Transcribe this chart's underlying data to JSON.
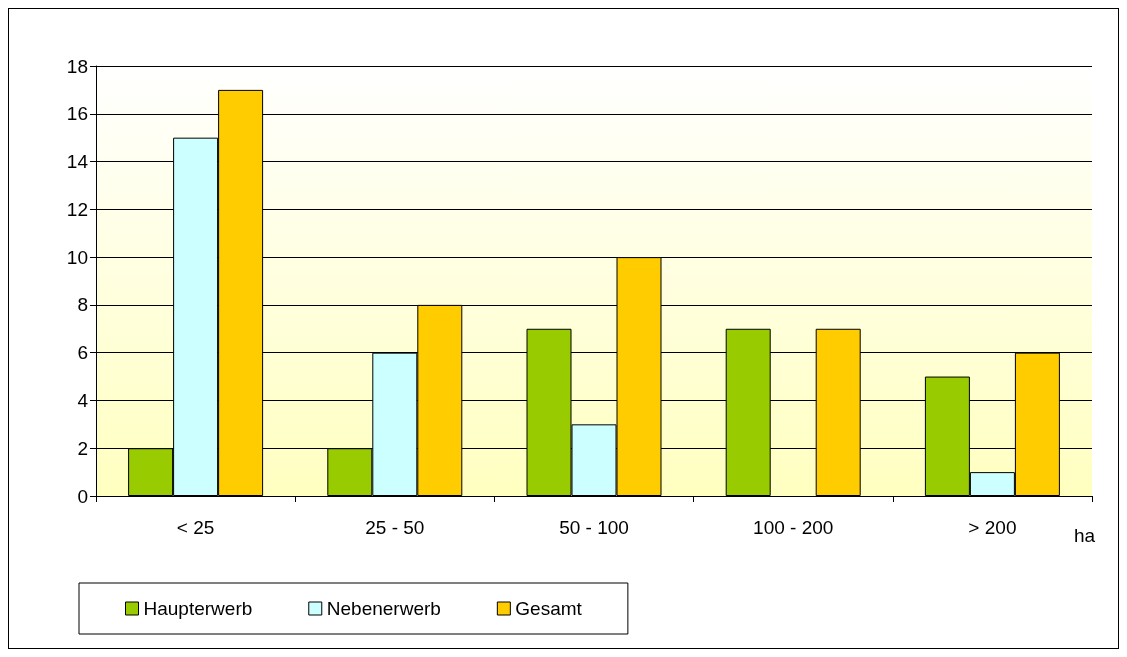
{
  "chart_data": {
    "type": "bar",
    "xlabel": "ha",
    "categories": [
      "< 25",
      "25 - 50",
      "50 - 100",
      "100 - 200",
      "> 200"
    ],
    "series": [
      {
        "name": "Haupterwerb",
        "color": "#99cc00",
        "values": [
          2,
          2,
          7,
          7,
          5
        ]
      },
      {
        "name": "Nebenerwerb",
        "color": "#ccffff",
        "values": [
          15,
          6,
          3,
          null,
          1
        ]
      },
      {
        "name": "Gesamt",
        "color": "#ffcc00",
        "values": [
          17,
          8,
          10,
          7,
          6
        ]
      }
    ],
    "ylim": [
      0,
      18
    ],
    "yticks": [
      0,
      2,
      4,
      6,
      8,
      10,
      12,
      14,
      16,
      18
    ],
    "grid": "y",
    "legend": "bottom"
  }
}
